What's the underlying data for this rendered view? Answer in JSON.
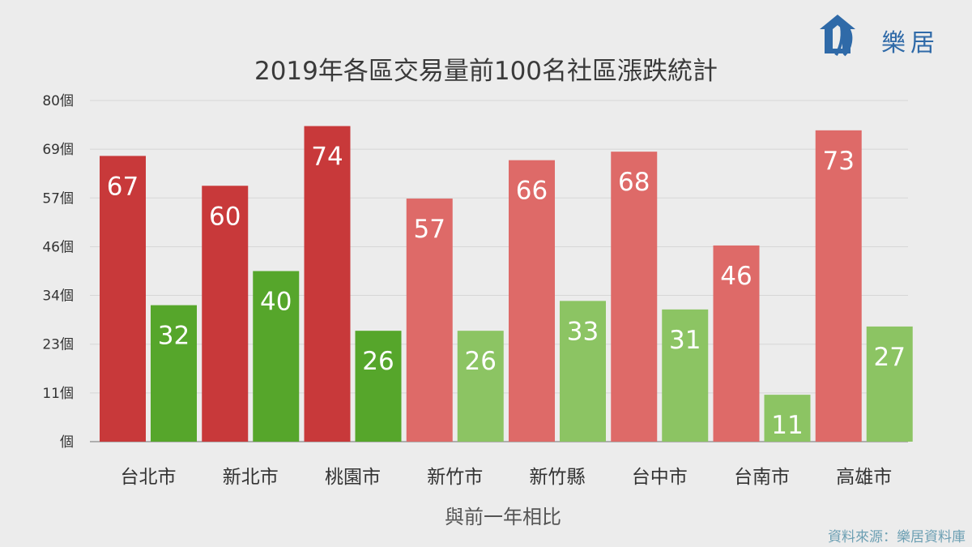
{
  "chart_data": {
    "type": "bar",
    "title": "2019年各區交易量前100名社區漲跌統計",
    "xlabel": "與前一年相比",
    "ylabel": "",
    "ylim": [
      0,
      80
    ],
    "yticks": [
      "個",
      "11個",
      "23個",
      "34個",
      "46個",
      "57個",
      "69個",
      "80個"
    ],
    "ytick_values": [
      0,
      11.43,
      22.86,
      34.29,
      45.71,
      57.14,
      68.57,
      80
    ],
    "grid": true,
    "categories": [
      "台北市",
      "新北市",
      "桃園市",
      "新竹市",
      "新竹縣",
      "台中市",
      "台南市",
      "高雄市"
    ],
    "series": [
      {
        "values": [
          67,
          60,
          74,
          57,
          66,
          68,
          46,
          73
        ]
      },
      {
        "values": [
          32,
          40,
          26,
          26,
          33,
          31,
          11,
          27
        ]
      }
    ],
    "colors": {
      "up_dark": "#c8393a",
      "up_light": "#de6a68",
      "down_dark": "#56a62b",
      "down_light": "#8cc463"
    }
  },
  "logo": {
    "text": "樂居"
  },
  "source": "資料來源：樂居資料庫"
}
